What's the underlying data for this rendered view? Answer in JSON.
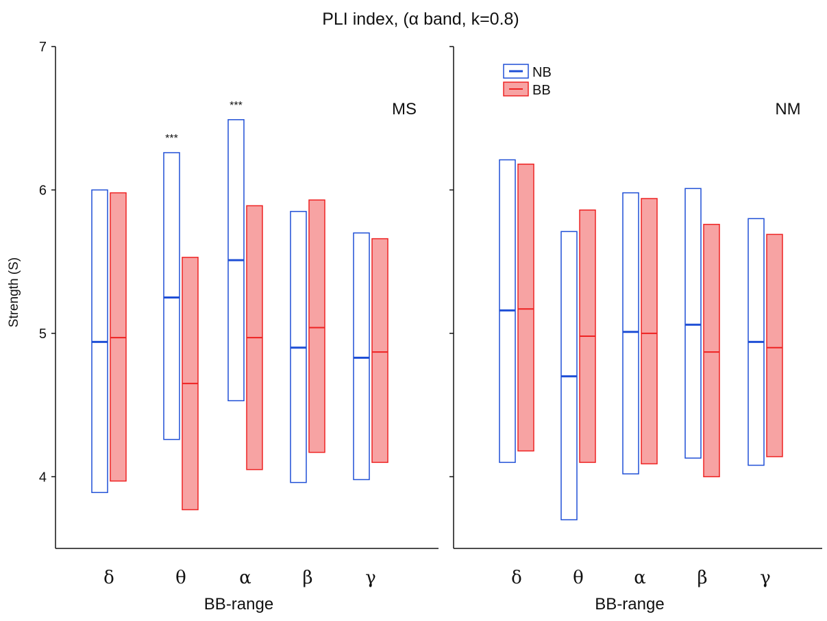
{
  "chart_data": {
    "type": "box",
    "title": "PLI index, (α band, k=0.8)",
    "ylabel": "Strength (S)",
    "ylim": [
      3.5,
      7.0
    ],
    "yticks": [
      4,
      5,
      6,
      7
    ],
    "categories": [
      "δ",
      "θ",
      "α",
      "β",
      "γ"
    ],
    "legend": {
      "position": "top-left of right panel",
      "entries": [
        {
          "label": "NB",
          "color": "#1f4fd6",
          "fill": "none"
        },
        {
          "label": "BB",
          "color": "#ee2222",
          "fill": "#f7a3a3"
        }
      ]
    },
    "panels": [
      {
        "label": "MS",
        "xlabel": "BB-range",
        "significance": [
          "",
          "***",
          "***",
          "",
          ""
        ],
        "series": [
          {
            "name": "NB",
            "low": [
              3.89,
              4.26,
              4.53,
              3.96,
              3.98
            ],
            "median": [
              4.94,
              5.25,
              5.51,
              4.9,
              4.83
            ],
            "high": [
              6.0,
              6.26,
              6.49,
              5.85,
              5.7
            ]
          },
          {
            "name": "BB",
            "low": [
              3.97,
              3.77,
              4.05,
              4.17,
              4.1
            ],
            "median": [
              4.97,
              4.65,
              4.97,
              5.04,
              4.87
            ],
            "high": [
              5.98,
              5.53,
              5.89,
              5.93,
              5.66
            ]
          }
        ]
      },
      {
        "label": "NM",
        "xlabel": "BB-range",
        "significance": [
          "",
          "",
          "",
          "",
          ""
        ],
        "series": [
          {
            "name": "NB",
            "low": [
              4.1,
              3.7,
              4.02,
              4.13,
              4.08
            ],
            "median": [
              5.16,
              4.7,
              5.01,
              5.06,
              4.94
            ],
            "high": [
              6.21,
              5.71,
              5.98,
              6.01,
              5.8
            ]
          },
          {
            "name": "BB",
            "low": [
              4.18,
              4.1,
              4.09,
              4.0,
              4.14
            ],
            "median": [
              5.17,
              4.98,
              5.0,
              4.87,
              4.9
            ],
            "high": [
              6.18,
              5.86,
              5.94,
              5.76,
              5.69
            ]
          }
        ]
      }
    ]
  }
}
